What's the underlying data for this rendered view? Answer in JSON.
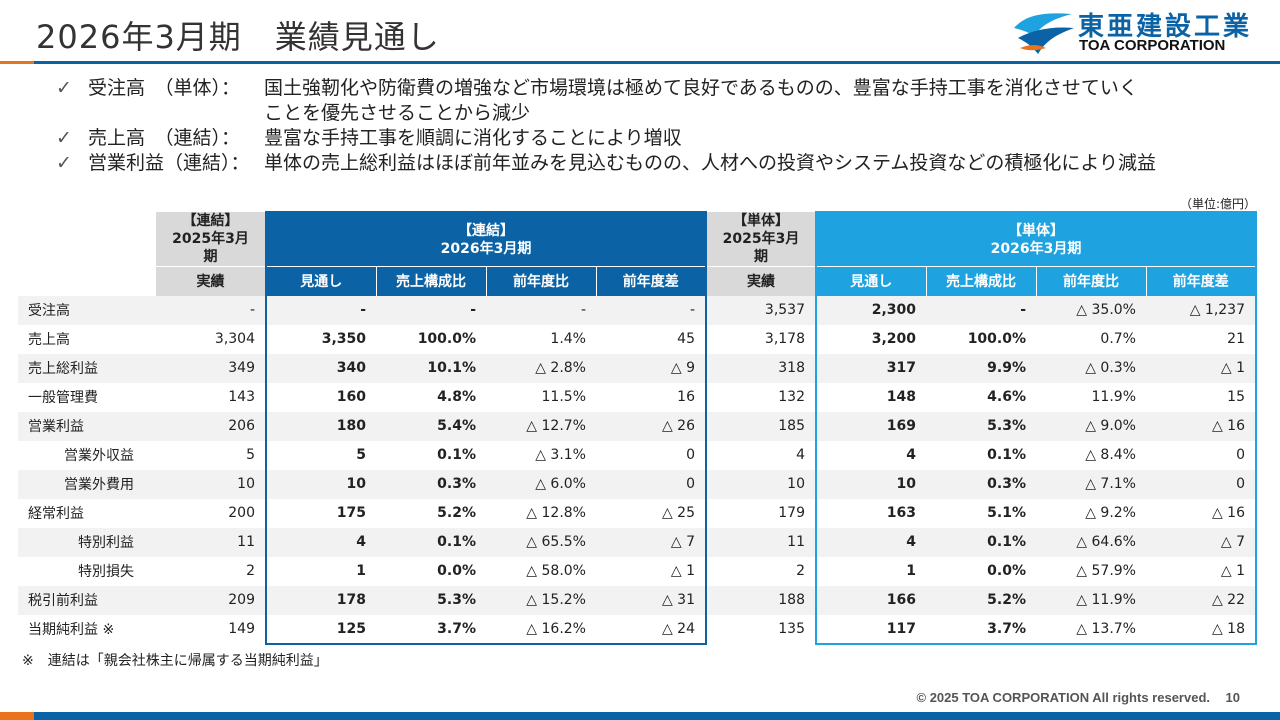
{
  "header": {
    "title": "2026年3月期　業績見通し",
    "logo_ja": "東亜建設工業",
    "logo_en": "TOA CORPORATION",
    "colors": {
      "primary": "#0b63a6",
      "accent": "#e8741e",
      "light": "#1fa3e0"
    }
  },
  "bullets": [
    {
      "label": "受注高　（単体）：",
      "text": "国土強靭化や防衛費の増強など市場環境は極めて良好であるものの、豊富な手持工事を消化させていく",
      "cont": "ことを優先させることから減少"
    },
    {
      "label": "売上高　（連結）：",
      "text": "豊富な手持工事を順調に消化することにより増収"
    },
    {
      "label": "営業利益（連結）：",
      "text": "単体の売上総利益はほぼ前年並みを見込むものの、人材への投資やシステム投資などの積極化により減益"
    }
  ],
  "check_mark": "✓",
  "unit_note": "（単位:億円）",
  "table": {
    "group_headers": {
      "cons_actual": "【連結】\n2025年3月期",
      "cons_forecast": "【連結】\n2026年3月期",
      "solo_actual": "【単体】\n2025年3月期",
      "solo_forecast": "【単体】\n2026年3月期"
    },
    "sub_headers": {
      "actual": "実績",
      "forecast": "見通し",
      "ratio": "売上構成比",
      "yoy": "前年度比",
      "diff": "前年度差"
    },
    "rows": [
      {
        "label": "受注高",
        "indent": 0,
        "cells": [
          "-",
          "-",
          "-",
          "-",
          "-",
          "3,537",
          "2,300",
          "-",
          "△ 35.0%",
          "△ 1,237"
        ]
      },
      {
        "label": "売上高",
        "indent": 0,
        "cells": [
          "3,304",
          "3,350",
          "100.0%",
          "1.4%",
          "45",
          "3,178",
          "3,200",
          "100.0%",
          "0.7%",
          "21"
        ]
      },
      {
        "label": "売上総利益",
        "indent": 0,
        "cells": [
          "349",
          "340",
          "10.1%",
          "△ 2.8%",
          "△ 9",
          "318",
          "317",
          "9.9%",
          "△ 0.3%",
          "△ 1"
        ]
      },
      {
        "label": "一般管理費",
        "indent": 0,
        "cells": [
          "143",
          "160",
          "4.8%",
          "11.5%",
          "16",
          "132",
          "148",
          "4.6%",
          "11.9%",
          "15"
        ]
      },
      {
        "label": "営業利益",
        "indent": 0,
        "cells": [
          "206",
          "180",
          "5.4%",
          "△ 12.7%",
          "△ 26",
          "185",
          "169",
          "5.3%",
          "△ 9.0%",
          "△ 16"
        ]
      },
      {
        "label": "営業外収益",
        "indent": 1,
        "cells": [
          "5",
          "5",
          "0.1%",
          "△ 3.1%",
          "0",
          "4",
          "4",
          "0.1%",
          "△ 8.4%",
          "0"
        ]
      },
      {
        "label": "営業外費用",
        "indent": 1,
        "cells": [
          "10",
          "10",
          "0.3%",
          "△ 6.0%",
          "0",
          "10",
          "10",
          "0.3%",
          "△ 7.1%",
          "0"
        ]
      },
      {
        "label": "経常利益",
        "indent": 0,
        "cells": [
          "200",
          "175",
          "5.2%",
          "△ 12.8%",
          "△ 25",
          "179",
          "163",
          "5.1%",
          "△ 9.2%",
          "△ 16"
        ]
      },
      {
        "label": "特別利益",
        "indent": 2,
        "cells": [
          "11",
          "4",
          "0.1%",
          "△ 65.5%",
          "△ 7",
          "11",
          "4",
          "0.1%",
          "△ 64.6%",
          "△ 7"
        ]
      },
      {
        "label": "特別損失",
        "indent": 2,
        "cells": [
          "2",
          "1",
          "0.0%",
          "△ 58.0%",
          "△ 1",
          "2",
          "1",
          "0.0%",
          "△ 57.9%",
          "△ 1"
        ]
      },
      {
        "label": "税引前利益",
        "indent": 0,
        "cells": [
          "209",
          "178",
          "5.3%",
          "△ 15.2%",
          "△ 31",
          "188",
          "166",
          "5.2%",
          "△ 11.9%",
          "△ 22"
        ]
      },
      {
        "label": "当期純利益 ※",
        "indent": 0,
        "cells": [
          "149",
          "125",
          "3.7%",
          "△ 16.2%",
          "△ 24",
          "135",
          "117",
          "3.7%",
          "△ 13.7%",
          "△ 18"
        ]
      }
    ]
  },
  "footnote": "※　連結は「親会社株主に帰属する当期純利益」",
  "footer": {
    "copyright": "© 2025 TOA CORPORATION  All rights reserved.",
    "page": "10"
  }
}
